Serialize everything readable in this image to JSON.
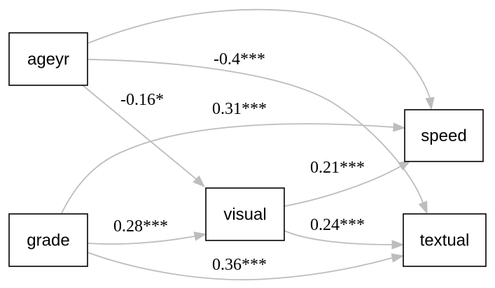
{
  "nodes": [
    {
      "id": "ageyr",
      "label": "ageyr"
    },
    {
      "id": "grade",
      "label": "grade"
    },
    {
      "id": "visual",
      "label": "visual"
    },
    {
      "id": "speed",
      "label": "speed"
    },
    {
      "id": "textual",
      "label": "textual"
    }
  ],
  "edges": [
    {
      "from": "ageyr",
      "to": "speed",
      "label": ""
    },
    {
      "from": "ageyr",
      "to": "textual",
      "label": "-0.4***"
    },
    {
      "from": "ageyr",
      "to": "visual",
      "label": "-0.16*"
    },
    {
      "from": "grade",
      "to": "speed",
      "label": "0.31***"
    },
    {
      "from": "visual",
      "to": "speed",
      "label": "0.21***"
    },
    {
      "from": "grade",
      "to": "visual",
      "label": "0.28***"
    },
    {
      "from": "visual",
      "to": "textual",
      "label": "0.24***"
    },
    {
      "from": "grade",
      "to": "textual",
      "label": "0.36***"
    }
  ],
  "colors": {
    "edge": "#bdbdbd",
    "node_border": "#000000"
  }
}
